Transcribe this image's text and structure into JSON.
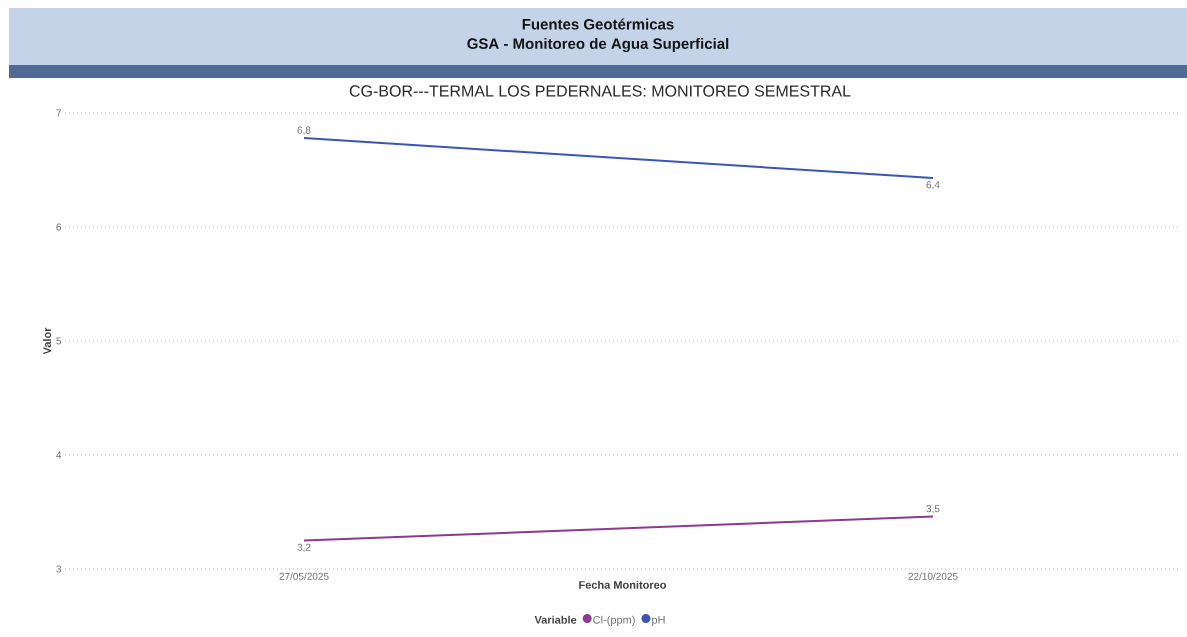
{
  "chart_data": {
    "type": "line",
    "title": "CG-BOR---TERMAL LOS PEDERNALES: MONITOREO SEMESTRAL",
    "annotations": [
      "Fuentes Geotérmicas",
      "GSA - Monitoreo de Agua Superficial"
    ],
    "xlabel": "Fecha Monitoreo",
    "ylabel": "Valor",
    "legend_title": "Variable",
    "categories": [
      "27/05/2025",
      "22/10/2025"
    ],
    "series": [
      {
        "name": "Cl-(ppm)",
        "color": "#8b3a8f",
        "values": [
          3.25,
          3.46
        ],
        "value_labels": [
          "3,2",
          "3,5"
        ]
      },
      {
        "name": "pH",
        "color": "#3a56b0",
        "values": [
          6.78,
          6.43
        ],
        "value_labels": [
          "6,8",
          "6,4"
        ]
      }
    ],
    "ylim": [
      3,
      7
    ],
    "yticks": [
      3,
      4,
      5,
      6,
      7
    ],
    "grid": "y",
    "legend": "bottom",
    "marker": "none",
    "line_style": "solid"
  }
}
